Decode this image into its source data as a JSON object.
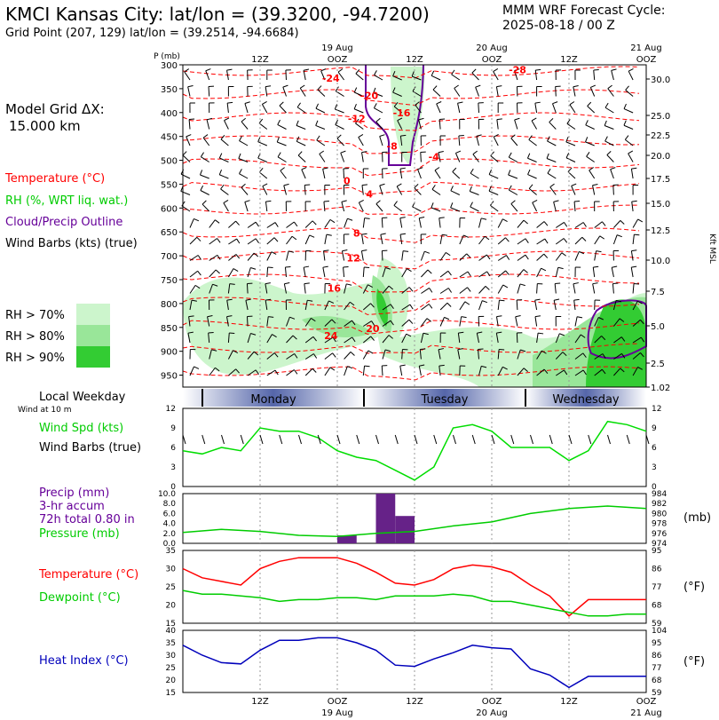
{
  "header": {
    "station": "KMCI Kansas City:  lat/lon = (39.3200, -94.7200)",
    "gridpoint": "Grid Point (207, 129) lat/lon = (39.2514, -94.6684)",
    "model": "MMM WRF Forecast Cycle:",
    "cycle": "2025-08-18 / 00  Z"
  },
  "side": {
    "grid_label": "Model Grid ΔX:",
    "grid_value": "15.000 km",
    "legend_temp": "Temperature (°C)",
    "legend_rh": "RH (%, WRT liq. wat.)",
    "legend_cloud": "Cloud/Precip Outline",
    "legend_wind": "Wind Barbs (kts) (true)",
    "rh70": "RH > 70%",
    "rh80": "RH > 80%",
    "rh90": "RH > 90%",
    "local_weekday": "Local Weekday",
    "wind_at": "Wind at 10 m",
    "wind_spd": "Wind Spd (kts)",
    "wind_barbs": "Wind Barbs (true)",
    "precip1": "Precip (mm)",
    "precip2": "3-hr accum",
    "precip3": "72h total 0.80 in",
    "pressure": "Pressure (mb)",
    "temp": "Temperature (°C)",
    "dewpoint": "Dewpoint (°C)",
    "heat_index": "Heat Index (°C)"
  },
  "colors": {
    "temp": "#ff0000",
    "rh_text": "#00cc00",
    "cloud": "#660099",
    "rh70": "#ccf5cc",
    "rh80": "#99e699",
    "rh90": "#33cc33",
    "wind": "#00dd00",
    "pressure": "#00cc00",
    "precip": "#662288",
    "dewpoint": "#00cc00",
    "heat": "#0000bb",
    "day_band": "#5566aa"
  },
  "chart_data": [
    {
      "type": "heatmap",
      "title": "Pressure-time cross section",
      "ylabel": "P (mb)",
      "y_ticks": [
        "300",
        "350",
        "400",
        "450",
        "500",
        "550",
        "600",
        "650",
        "700",
        "750",
        "800",
        "850",
        "900",
        "950"
      ],
      "right_ticks": [
        "30.0",
        "25.0",
        "22.5",
        "20.0",
        "17.5",
        "15.0",
        "12.5",
        "10.0",
        "7.5",
        "5.0",
        "2.5",
        "1.02"
      ],
      "right_label": "Kft MSL",
      "top_ticks": [
        {
          "t": 12,
          "label": "12Z",
          "date": ""
        },
        {
          "t": 24,
          "label": "OOZ",
          "date": "19 Aug"
        },
        {
          "t": 36,
          "label": "12Z",
          "date": ""
        },
        {
          "t": 48,
          "label": "OOZ",
          "date": "20 Aug"
        },
        {
          "t": 60,
          "label": "12Z",
          "date": ""
        },
        {
          "t": 72,
          "label": "OOZ",
          "date": "21 Aug"
        }
      ],
      "temp_labels": [
        {
          "t": 23,
          "p": 335,
          "v": "-24"
        },
        {
          "t": 29,
          "p": 372,
          "v": "-20"
        },
        {
          "t": 34,
          "p": 408,
          "v": "-16"
        },
        {
          "t": 27,
          "p": 420,
          "v": "-12"
        },
        {
          "t": 32.5,
          "p": 478,
          "v": "-8"
        },
        {
          "t": 39,
          "p": 500,
          "v": "-4"
        },
        {
          "t": 25.5,
          "p": 550,
          "v": "0"
        },
        {
          "t": 29,
          "p": 578,
          "v": "4"
        },
        {
          "t": 27,
          "p": 660,
          "v": "8"
        },
        {
          "t": 26.5,
          "p": 712,
          "v": "12"
        },
        {
          "t": 23.5,
          "p": 775,
          "v": "16"
        },
        {
          "t": 29.5,
          "p": 860,
          "v": "20"
        },
        {
          "t": 23,
          "p": 875,
          "v": "24"
        },
        {
          "t": 52,
          "p": 318,
          "v": "-28"
        }
      ]
    },
    {
      "type": "line",
      "title": "Wind Spd (kts)",
      "ylim": [
        0,
        12
      ],
      "yticks": [
        "0",
        "3",
        "6",
        "9",
        "12"
      ],
      "x": [
        0,
        3,
        6,
        9,
        12,
        15,
        18,
        21,
        24,
        27,
        30,
        33,
        36,
        39,
        42,
        45,
        48,
        51,
        54,
        57,
        60,
        63,
        66,
        69,
        72
      ],
      "values": [
        5.5,
        5,
        6,
        5.5,
        9,
        8.5,
        8.5,
        7.5,
        5.5,
        4.5,
        4,
        2.5,
        1,
        3,
        9,
        9.5,
        8.5,
        6,
        6,
        6,
        4,
        5.5,
        10,
        9.5,
        8.5
      ]
    },
    {
      "type": "bar",
      "title": "Precip (mm)",
      "ylim": [
        0,
        10
      ],
      "yticks": [
        "0.0",
        "2.0",
        "4.0",
        "6.0",
        "8.0",
        "10.0"
      ],
      "bars": [
        {
          "t": 24,
          "v": 1.6
        },
        {
          "t": 30,
          "v": 10.0
        },
        {
          "t": 33,
          "v": 5.5
        }
      ],
      "pressure": {
        "ylim": [
          974,
          984
        ],
        "yticks": [
          "974",
          "976",
          "978",
          "980",
          "982",
          "984"
        ],
        "unit": "(mb)",
        "x": [
          0,
          6,
          12,
          18,
          24,
          30,
          36,
          42,
          48,
          54,
          60,
          66,
          72
        ],
        "values": [
          976.2,
          976.8,
          976.4,
          975.6,
          975.4,
          976.0,
          976.4,
          977.5,
          978.3,
          980.0,
          981.0,
          981.5,
          981.0
        ]
      }
    },
    {
      "type": "line",
      "title": "Temperature / Dewpoint",
      "ylim": [
        15,
        35
      ],
      "yticks": [
        "15",
        "20",
        "25",
        "30",
        "35"
      ],
      "right_ticks": [
        "59",
        "68",
        "77",
        "86",
        "95"
      ],
      "unit": "(°F)",
      "x": [
        0,
        3,
        6,
        9,
        12,
        15,
        18,
        21,
        24,
        27,
        30,
        33,
        36,
        39,
        42,
        45,
        48,
        51,
        54,
        57,
        60,
        63,
        66,
        69,
        72
      ],
      "series": [
        {
          "name": "Temperature",
          "values": [
            30,
            27.5,
            26.5,
            25.5,
            30,
            32,
            33,
            33,
            33,
            31.5,
            29,
            26,
            25.5,
            27,
            30,
            31,
            30.5,
            29,
            25.5,
            22.5,
            17,
            21.5,
            21.5,
            21.5,
            21.5
          ]
        },
        {
          "name": "Dewpoint",
          "values": [
            24,
            23,
            23,
            22.5,
            22,
            21,
            21.5,
            21.5,
            22,
            22,
            21.5,
            22.5,
            22.5,
            22.5,
            23,
            22.5,
            21,
            21,
            20,
            19,
            18,
            17,
            17,
            17.5,
            17.5
          ]
        }
      ]
    },
    {
      "type": "line",
      "title": "Heat Index (°C)",
      "ylim": [
        15,
        40
      ],
      "yticks": [
        "15",
        "20",
        "25",
        "30",
        "35",
        "40"
      ],
      "right_ticks": [
        "59",
        "68",
        "77",
        "86",
        "95",
        "104"
      ],
      "unit": "(°F)",
      "x": [
        0,
        3,
        6,
        9,
        12,
        15,
        18,
        21,
        24,
        27,
        30,
        33,
        36,
        39,
        42,
        45,
        48,
        51,
        54,
        57,
        60,
        63,
        66,
        69,
        72
      ],
      "values": [
        34,
        30,
        27,
        26.5,
        32,
        36,
        36,
        37,
        37,
        35,
        32,
        26,
        25.5,
        28.5,
        31,
        34,
        33,
        32.5,
        24.5,
        22,
        17,
        21.5,
        21.5,
        21.5,
        21.5
      ]
    }
  ],
  "bottom_ticks": [
    {
      "t": 12,
      "label": "12Z",
      "date": ""
    },
    {
      "t": 24,
      "label": "OOZ",
      "date": "19 Aug"
    },
    {
      "t": 36,
      "label": "12Z",
      "date": ""
    },
    {
      "t": 48,
      "label": "OOZ",
      "date": "20 Aug"
    },
    {
      "t": 60,
      "label": "12Z",
      "date": ""
    },
    {
      "t": 72,
      "label": "OOZ",
      "date": "21 Aug"
    }
  ],
  "days": [
    "Monday",
    "Tuesday",
    "Wednesday"
  ]
}
